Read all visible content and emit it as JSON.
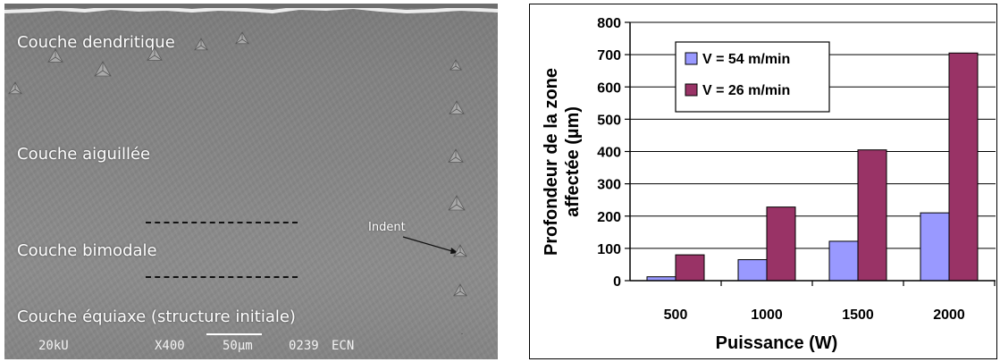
{
  "micrograph": {
    "layers": {
      "dendritic": "Couche dendritique",
      "needle": "Couche aiguillée",
      "bimodal": "Couche bimodale",
      "equiaxed": "Couche équiaxe (structure initiale)"
    },
    "indent_label": "Indent",
    "info": {
      "voltage": "20kU",
      "magnification": "X400",
      "scale": "50µm",
      "image_number": "0239",
      "lab": "ECN"
    }
  },
  "chart_data": {
    "type": "bar",
    "title": "",
    "xlabel": "Puissance (W)",
    "ylabel_lines": [
      "Profondeur de la zone",
      "affectée (µm)"
    ],
    "categories": [
      "500",
      "1000",
      "1500",
      "2000"
    ],
    "ylim": [
      0,
      800
    ],
    "yticks": [
      0,
      100,
      200,
      300,
      400,
      500,
      600,
      700,
      800
    ],
    "grid": "horizontal",
    "legend_position": "top-left",
    "series": [
      {
        "name": "V = 54 m/min",
        "values": [
          12,
          65,
          122,
          210
        ],
        "color": "#9999ff"
      },
      {
        "name": "V = 26 m/min",
        "values": [
          80,
          228,
          405,
          705
        ],
        "color": "#993366"
      }
    ]
  }
}
